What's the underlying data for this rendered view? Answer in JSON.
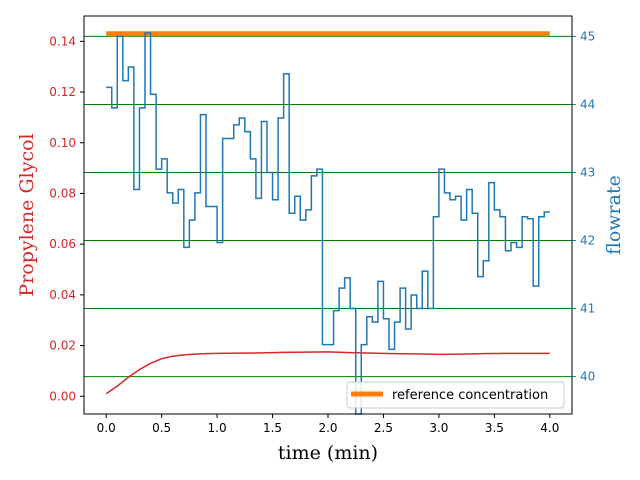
{
  "chart_data": {
    "type": "line",
    "xlabel": "time (min)",
    "ylabel_left": "Propylene Glycol",
    "ylabel_right": "flowrate",
    "xlim": [
      -0.2,
      4.2
    ],
    "ylim_left": [
      -0.007,
      0.15
    ],
    "ylim_right": [
      39.45,
      45.3
    ],
    "grid": "horizontal at right-axis ticks",
    "legend_placement": "lower right",
    "x_ticks": [
      "0.0",
      "0.5",
      "1.0",
      "1.5",
      "2.0",
      "2.5",
      "3.0",
      "3.5",
      "4.0"
    ],
    "y_left_ticks": [
      "0.00",
      "0.02",
      "0.04",
      "0.06",
      "0.08",
      "0.10",
      "0.12",
      "0.14"
    ],
    "y_right_ticks": [
      "40",
      "41",
      "42",
      "43",
      "44",
      "45"
    ],
    "colors": {
      "left_axis": "#d62728",
      "right_axis": "#1f77b4",
      "reference": "#ff7f0e",
      "grid": "#008000"
    },
    "series": [
      {
        "name": "reference concentration",
        "axis": "left",
        "style": "thick-line",
        "color": "#ff7f0e",
        "x": [
          0.0,
          4.0
        ],
        "y": [
          0.143,
          0.143
        ]
      },
      {
        "axis": "left",
        "style": "line",
        "color": "#d62728",
        "x": [
          0.0,
          0.1,
          0.2,
          0.3,
          0.4,
          0.5,
          0.6,
          0.7,
          0.8,
          0.9,
          1.0,
          1.2,
          1.4,
          1.6,
          1.8,
          2.0,
          2.2,
          2.4,
          2.6,
          2.8,
          3.0,
          3.2,
          3.4,
          3.6,
          3.8,
          4.0
        ],
        "y": [
          0.001,
          0.004,
          0.0075,
          0.0105,
          0.013,
          0.0148,
          0.0158,
          0.0163,
          0.0166,
          0.0168,
          0.0169,
          0.017,
          0.0171,
          0.0173,
          0.0174,
          0.0175,
          0.0172,
          0.017,
          0.0168,
          0.0167,
          0.0165,
          0.0166,
          0.0168,
          0.0169,
          0.0169,
          0.0169
        ]
      },
      {
        "axis": "right",
        "style": "step",
        "color": "#1f77b4",
        "x": [
          0.0,
          0.05,
          0.1,
          0.15,
          0.2,
          0.25,
          0.3,
          0.35,
          0.4,
          0.45,
          0.5,
          0.55,
          0.6,
          0.65,
          0.7,
          0.75,
          0.8,
          0.85,
          0.9,
          0.95,
          1.0,
          1.05,
          1.1,
          1.15,
          1.2,
          1.25,
          1.3,
          1.35,
          1.4,
          1.45,
          1.5,
          1.55,
          1.6,
          1.65,
          1.7,
          1.75,
          1.8,
          1.85,
          1.9,
          1.95,
          2.0,
          2.05,
          2.1,
          2.15,
          2.2,
          2.25,
          2.3,
          2.35,
          2.4,
          2.45,
          2.5,
          2.55,
          2.6,
          2.65,
          2.7,
          2.75,
          2.8,
          2.85,
          2.9,
          2.95,
          3.0,
          3.05,
          3.1,
          3.15,
          3.2,
          3.25,
          3.3,
          3.35,
          3.4,
          3.45,
          3.5,
          3.55,
          3.6,
          3.65,
          3.7,
          3.75,
          3.8,
          3.85,
          3.9,
          3.95,
          4.0
        ],
        "y": [
          44.25,
          43.95,
          45.0,
          44.35,
          44.55,
          42.75,
          43.95,
          45.05,
          44.15,
          43.05,
          43.2,
          42.7,
          42.55,
          42.75,
          41.9,
          42.3,
          42.7,
          43.85,
          42.5,
          42.5,
          41.97,
          43.5,
          43.5,
          43.7,
          43.8,
          43.6,
          43.2,
          42.62,
          43.75,
          43.0,
          42.6,
          43.8,
          44.45,
          42.4,
          42.65,
          42.3,
          42.45,
          42.95,
          43.05,
          40.47,
          40.47,
          40.97,
          41.3,
          41.45,
          41.0,
          39.45,
          40.47,
          40.88,
          40.8,
          41.4,
          40.85,
          40.4,
          40.8,
          41.3,
          40.7,
          41.2,
          41.0,
          41.55,
          41.0,
          42.35,
          43.05,
          42.7,
          42.6,
          42.65,
          42.3,
          42.75,
          42.4,
          41.47,
          41.7,
          42.85,
          42.45,
          42.35,
          41.85,
          41.97,
          41.9,
          42.35,
          42.32,
          41.33,
          42.35,
          42.42,
          42.42
        ]
      }
    ]
  }
}
